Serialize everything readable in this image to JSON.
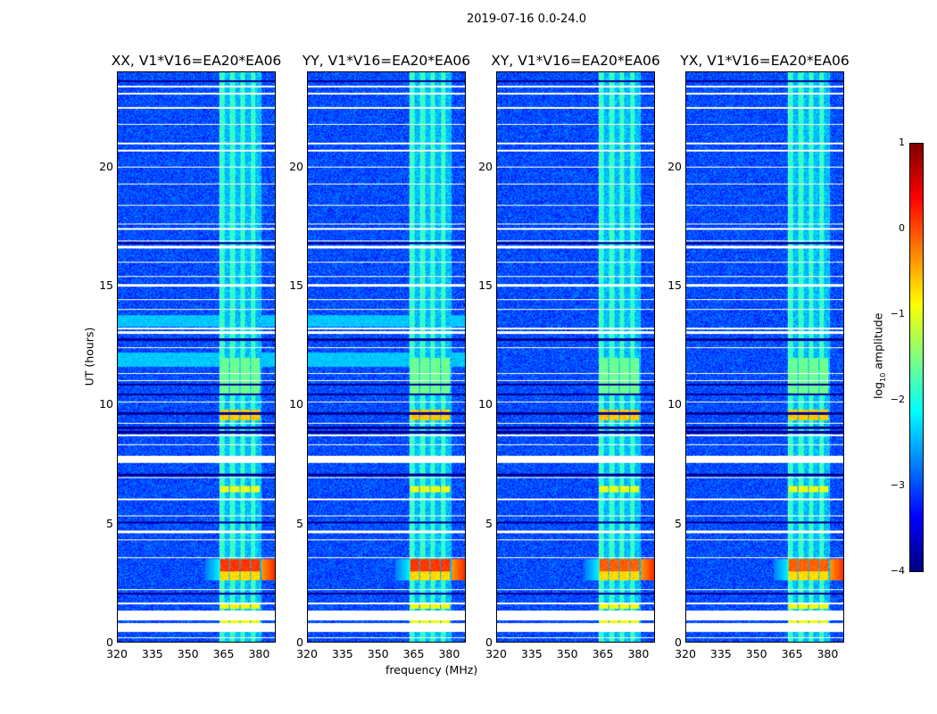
{
  "suptitle": "2019-07-16 0.0-24.0",
  "chart_data": [
    {
      "type": "heatmap",
      "title": "XX, V1*V16=EA20*EA06",
      "pol": "XX"
    },
    {
      "type": "heatmap",
      "title": "YY, V1*V16=EA20*EA06",
      "pol": "YY"
    },
    {
      "type": "heatmap",
      "title": "XY, V1*V16=EA20*EA06",
      "pol": "XY"
    },
    {
      "type": "heatmap",
      "title": "YX, V1*V16=EA20*EA06",
      "pol": "YX"
    }
  ],
  "axes": {
    "xlabel": "frequency (MHz)",
    "ylabel": "UT (hours)",
    "xlim": [
      320,
      387
    ],
    "ylim": [
      0,
      24
    ],
    "xticks": [
      "320",
      "335",
      "350",
      "365",
      "380"
    ],
    "xtick_values": [
      320,
      335,
      350,
      365,
      380
    ],
    "yticks": [
      "0",
      "5",
      "10",
      "15",
      "20"
    ],
    "ytick_values": [
      0,
      5,
      10,
      15,
      20
    ]
  },
  "colorbar": {
    "label": "log10 amplitude",
    "label_main": "log",
    "label_sub": "10",
    "label_rest": " amplitude",
    "range": [
      -4,
      1
    ],
    "ticks": [
      "1",
      "0",
      "−1",
      "−2",
      "−3",
      "−4"
    ],
    "tick_values": [
      1,
      0,
      -1,
      -2,
      -3,
      -4
    ],
    "colormap": "jet"
  },
  "features": {
    "background_level": -3.0,
    "rfi_band_mhz": [
      363,
      381
    ],
    "rfi_band_level": -2.1,
    "flagged_hours": [
      [
        0.45,
        0.8
      ],
      [
        0.9,
        1.35
      ],
      [
        0.15,
        0.2
      ],
      [
        1.6,
        1.65
      ],
      [
        2.2,
        2.25
      ],
      [
        3.55,
        3.6
      ],
      [
        4.3,
        4.35
      ],
      [
        4.6,
        4.7
      ],
      [
        5.3,
        5.35
      ],
      [
        6.0,
        6.05
      ],
      [
        6.9,
        6.95
      ],
      [
        7.55,
        7.85
      ],
      [
        8.3,
        8.35
      ],
      [
        8.7,
        8.75
      ],
      [
        9.2,
        9.25
      ],
      [
        10.1,
        10.15
      ],
      [
        11.0,
        11.05
      ],
      [
        11.3,
        11.35
      ],
      [
        12.4,
        12.45
      ],
      [
        13.0,
        13.1
      ],
      [
        13.2,
        13.25
      ],
      [
        14.0,
        14.05
      ],
      [
        14.4,
        14.45
      ],
      [
        15.0,
        15.1
      ],
      [
        15.4,
        15.45
      ],
      [
        16.0,
        16.05
      ],
      [
        16.6,
        16.7
      ],
      [
        16.9,
        16.95
      ],
      [
        17.4,
        17.45
      ],
      [
        17.6,
        17.65
      ],
      [
        18.4,
        18.45
      ],
      [
        19.3,
        19.35
      ],
      [
        20.0,
        20.05
      ],
      [
        20.7,
        20.75
      ],
      [
        21.0,
        21.05
      ],
      [
        21.8,
        21.85
      ],
      [
        22.5,
        22.55
      ],
      [
        23.1,
        23.15
      ],
      [
        23.4,
        23.45
      ]
    ],
    "dark_hours": [
      [
        2.0,
        2.1
      ],
      [
        5.0,
        5.1
      ],
      [
        7.0,
        7.1
      ],
      [
        8.8,
        8.9
      ],
      [
        9.0,
        9.1
      ],
      [
        9.6,
        9.7
      ],
      [
        10.4,
        10.5
      ],
      [
        10.8,
        10.9
      ],
      [
        12.7,
        12.8
      ],
      [
        16.8,
        16.85
      ],
      [
        23.6,
        23.7
      ]
    ],
    "events": [
      {
        "hours": [
          3.0,
          3.5
        ],
        "level": 0.1
      },
      {
        "hours": [
          2.6,
          3.0
        ],
        "level": -0.7
      },
      {
        "hours": [
          9.35,
          9.8
        ],
        "level": -0.6
      },
      {
        "hours": [
          6.3,
          6.6
        ],
        "level": -1.0
      },
      {
        "hours": [
          1.4,
          1.6
        ],
        "level": -0.9
      },
      {
        "hours": [
          0.8,
          0.95
        ],
        "level": -0.9
      },
      {
        "hours": [
          10.5,
          12.0
        ],
        "level": -1.6
      }
    ],
    "broadband_hours": [
      [
        11.6,
        12.2
      ],
      [
        13.3,
        13.8
      ]
    ]
  }
}
